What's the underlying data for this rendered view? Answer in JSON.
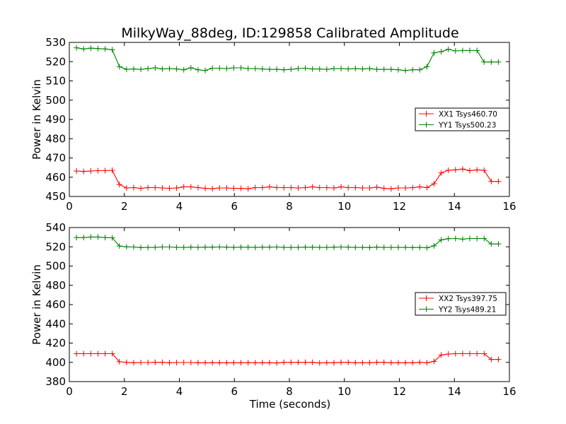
{
  "figure": {
    "title": "MilkyWay_88deg, ID:129858 Calibrated Amplitude",
    "xlabel": "Time (seconds)"
  },
  "chart_data": [
    {
      "type": "line",
      "ylabel": "Power in Kelvin",
      "xlim": [
        0,
        16
      ],
      "ylim": [
        450,
        530
      ],
      "xticks": [
        0,
        2,
        4,
        6,
        8,
        10,
        12,
        14,
        16
      ],
      "yticks": [
        450,
        460,
        470,
        480,
        490,
        500,
        510,
        520,
        530
      ],
      "legend_position": "center-right",
      "x": [
        0.26,
        0.52,
        0.78,
        1.04,
        1.3,
        1.56,
        1.82,
        2.08,
        2.34,
        2.6,
        2.86,
        3.12,
        3.38,
        3.64,
        3.9,
        4.16,
        4.42,
        4.68,
        4.94,
        5.2,
        5.46,
        5.72,
        5.98,
        6.24,
        6.5,
        6.76,
        7.02,
        7.28,
        7.54,
        7.8,
        8.06,
        8.32,
        8.58,
        8.84,
        9.1,
        9.36,
        9.62,
        9.88,
        10.14,
        10.4,
        10.66,
        10.92,
        11.18,
        11.44,
        11.7,
        11.96,
        12.22,
        12.48,
        12.74,
        13.0,
        13.26,
        13.52,
        13.78,
        14.04,
        14.3,
        14.56,
        14.82,
        15.08,
        15.34,
        15.6
      ],
      "series": [
        {
          "name": "XX1 Tsys460.70",
          "color": "#ff0000",
          "values": [
            463.2,
            463.0,
            463.2,
            463.4,
            463.4,
            463.6,
            456.2,
            454.4,
            454.6,
            454.2,
            454.6,
            454.6,
            454.4,
            454.2,
            454.4,
            455.0,
            455.0,
            454.6,
            454.2,
            454.0,
            454.4,
            454.4,
            454.2,
            454.2,
            454.0,
            454.6,
            454.6,
            455.0,
            454.6,
            454.6,
            454.6,
            454.4,
            454.6,
            455.0,
            454.6,
            454.6,
            454.4,
            455.0,
            454.6,
            454.6,
            454.4,
            454.4,
            454.8,
            454.2,
            454.0,
            454.4,
            454.4,
            454.6,
            455.0,
            454.6,
            456.6,
            462.2,
            463.6,
            463.8,
            464.2,
            463.4,
            463.8,
            463.6,
            457.8,
            457.8
          ]
        },
        {
          "name": "YY1 Tsys500.23",
          "color": "#008000",
          "values": [
            527.2,
            526.6,
            527.0,
            526.8,
            526.6,
            526.2,
            517.4,
            516.0,
            516.2,
            516.0,
            516.4,
            516.8,
            516.2,
            516.4,
            516.2,
            515.8,
            516.8,
            515.8,
            515.4,
            516.6,
            516.6,
            516.4,
            516.8,
            516.8,
            516.4,
            516.4,
            516.2,
            516.0,
            516.0,
            515.8,
            516.0,
            516.4,
            516.6,
            516.2,
            516.2,
            516.0,
            516.4,
            516.4,
            516.2,
            516.4,
            516.2,
            516.4,
            516.0,
            516.0,
            516.0,
            515.8,
            515.4,
            515.8,
            515.8,
            517.4,
            524.6,
            525.2,
            526.4,
            525.6,
            525.8,
            525.8,
            525.8,
            519.8,
            519.8,
            519.8
          ]
        }
      ]
    },
    {
      "type": "line",
      "ylabel": "Power in Kelvin",
      "xlabel": "Time (seconds)",
      "xlim": [
        0,
        16
      ],
      "ylim": [
        380,
        540
      ],
      "xticks": [
        0,
        2,
        4,
        6,
        8,
        10,
        12,
        14,
        16
      ],
      "yticks": [
        380,
        400,
        420,
        440,
        460,
        480,
        500,
        520,
        540
      ],
      "legend_position": "center-right",
      "x": [
        0.26,
        0.52,
        0.78,
        1.04,
        1.3,
        1.56,
        1.82,
        2.08,
        2.34,
        2.6,
        2.86,
        3.12,
        3.38,
        3.64,
        3.9,
        4.16,
        4.42,
        4.68,
        4.94,
        5.2,
        5.46,
        5.72,
        5.98,
        6.24,
        6.5,
        6.76,
        7.02,
        7.28,
        7.54,
        7.8,
        8.06,
        8.32,
        8.58,
        8.84,
        9.1,
        9.36,
        9.62,
        9.88,
        10.14,
        10.4,
        10.66,
        10.92,
        11.18,
        11.44,
        11.7,
        11.96,
        12.22,
        12.48,
        12.74,
        13.0,
        13.26,
        13.52,
        13.78,
        14.04,
        14.3,
        14.56,
        14.82,
        15.08,
        15.34,
        15.6
      ],
      "series": [
        {
          "name": "XX2 Tsys397.75",
          "color": "#ff0000",
          "values": [
            409.0,
            409.0,
            409.0,
            409.0,
            409.0,
            409.0,
            400.6,
            400.0,
            399.6,
            399.8,
            399.8,
            400.0,
            400.0,
            399.6,
            399.8,
            399.8,
            399.8,
            399.6,
            399.6,
            399.6,
            399.6,
            399.6,
            399.6,
            399.6,
            399.6,
            399.6,
            399.6,
            399.6,
            399.4,
            400.0,
            400.0,
            400.0,
            400.0,
            400.0,
            399.4,
            399.6,
            399.6,
            400.0,
            400.0,
            399.6,
            399.6,
            399.6,
            400.0,
            400.0,
            399.6,
            399.6,
            399.6,
            399.6,
            400.0,
            399.6,
            401.0,
            407.6,
            408.6,
            409.0,
            409.0,
            409.0,
            409.0,
            409.0,
            403.0,
            403.0
          ]
        },
        {
          "name": "YY2 Tsys489.21",
          "color": "#008000",
          "values": [
            529.6,
            529.6,
            530.2,
            530.2,
            529.6,
            529.4,
            520.8,
            520.0,
            519.8,
            519.2,
            519.4,
            519.4,
            519.8,
            519.8,
            519.4,
            519.4,
            519.6,
            519.4,
            519.6,
            519.6,
            519.8,
            519.6,
            519.4,
            519.6,
            519.6,
            519.4,
            519.6,
            519.6,
            519.8,
            519.4,
            519.4,
            519.4,
            519.6,
            519.6,
            519.4,
            519.4,
            519.6,
            519.8,
            519.6,
            519.4,
            519.4,
            519.2,
            519.6,
            519.4,
            519.4,
            519.4,
            519.4,
            519.2,
            519.4,
            519.0,
            521.0,
            527.2,
            528.4,
            528.6,
            528.0,
            528.6,
            528.6,
            528.6,
            523.0,
            523.0
          ]
        }
      ]
    }
  ]
}
